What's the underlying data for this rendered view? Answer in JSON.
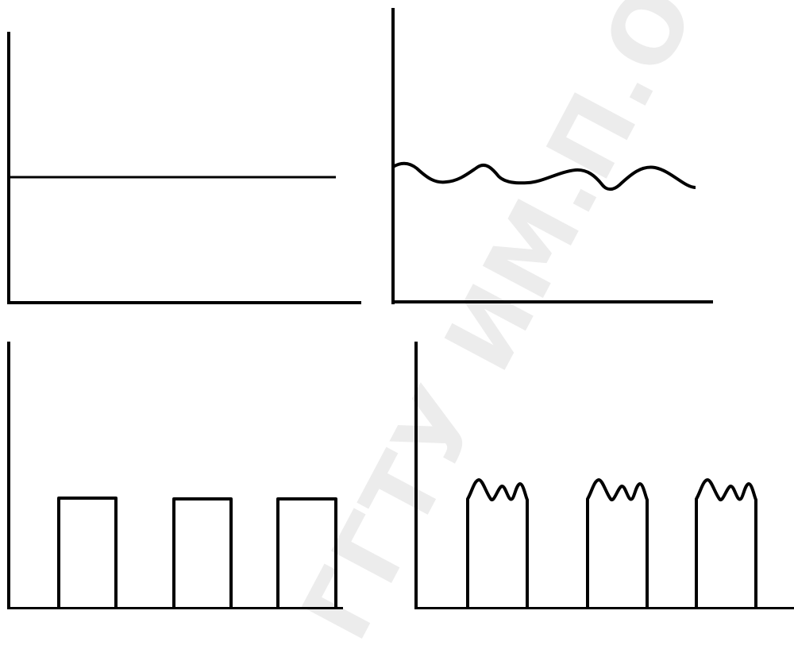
{
  "watermark": {
    "text": "ГГТУ ИМ.П.О.",
    "color": "#ececec"
  },
  "style": {
    "line_color": "#000000",
    "background": "#ffffff"
  },
  "panels": [
    {
      "name": "constant-signal",
      "shape": "constant"
    },
    {
      "name": "noisy-signal",
      "shape": "wavy-line"
    },
    {
      "name": "rectangular-pulses",
      "shape": "pulses",
      "pulse_count": 3
    },
    {
      "name": "noisy-pulses",
      "shape": "pulses-with-ripple",
      "pulse_count": 3
    }
  ]
}
